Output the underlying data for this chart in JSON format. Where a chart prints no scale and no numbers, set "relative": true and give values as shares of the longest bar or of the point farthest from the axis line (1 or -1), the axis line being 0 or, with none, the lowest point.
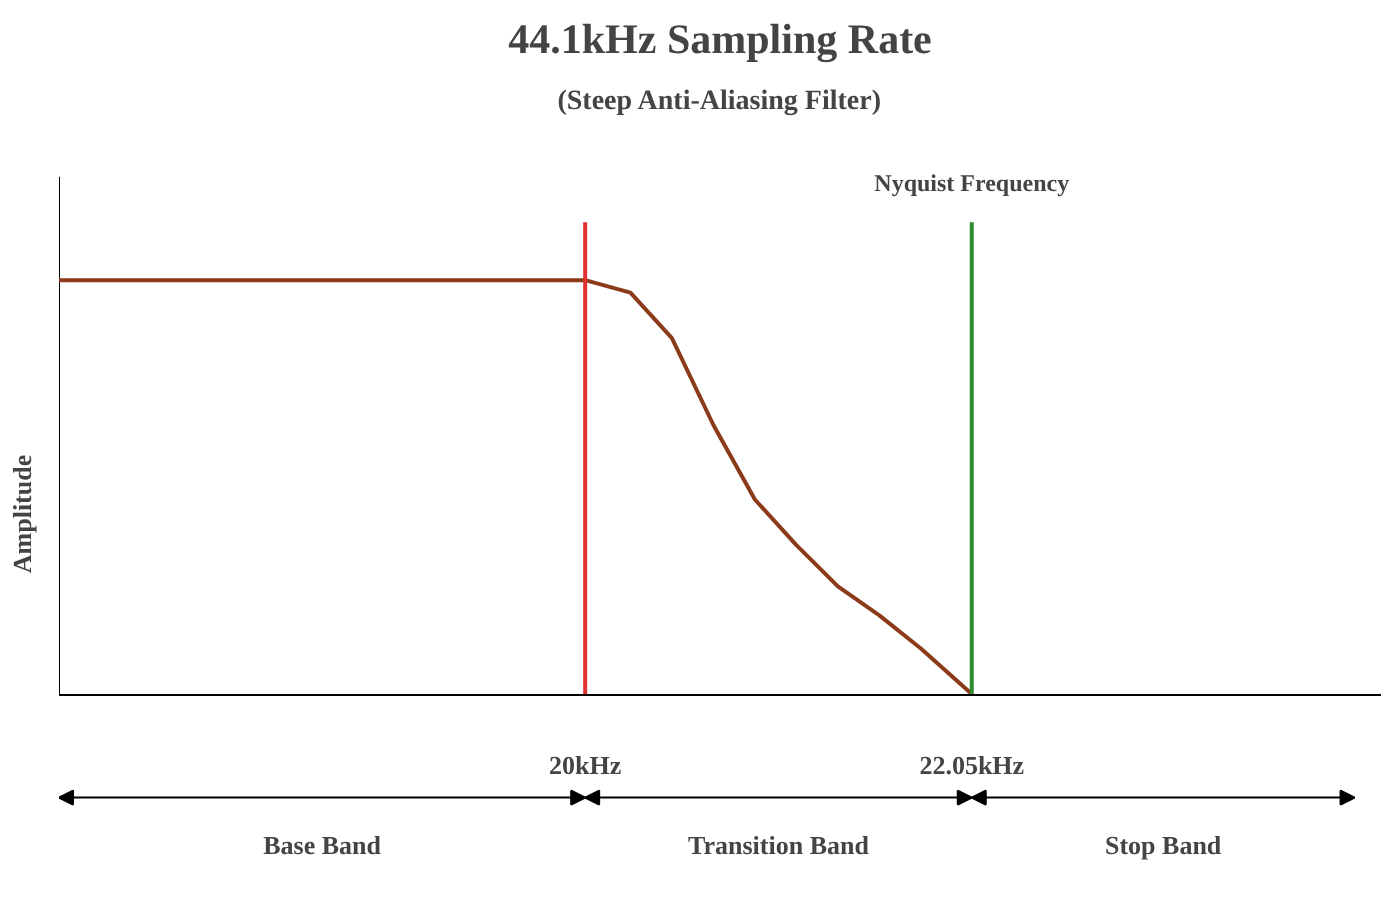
{
  "chart_data": {
    "type": "line",
    "title": "44.1kHz Sampling Rate",
    "subtitle": "(Steep Anti-Aliasing Filter)",
    "ylabel": "Amplitude",
    "relative": true,
    "x": [
      17.21,
      20.0,
      20.24,
      20.46,
      20.68,
      20.9,
      21.12,
      21.34,
      21.56,
      21.78,
      22.05
    ],
    "series": [
      {
        "color": "#8b3a1a",
        "values": [
          1.0,
          1.0,
          0.97,
          0.86,
          0.65,
          0.47,
          0.36,
          0.26,
          0.19,
          0.11,
          0.0
        ]
      }
    ],
    "xlim": [
      17.21,
      24.22
    ],
    "xticks": [
      {
        "value": 20,
        "label": "20kHz"
      },
      {
        "value": 22.05,
        "label": "22.05kHz"
      }
    ],
    "ref_lines": [
      {
        "axis": "x",
        "value": 20,
        "label": null,
        "color": "#e03030"
      },
      {
        "axis": "x",
        "value": 22.05,
        "label": "Nyquist Frequency",
        "color": "#2e8b2e"
      }
    ],
    "annotations": [
      "Base Band",
      "Transition Band",
      "Stop Band"
    ],
    "grid": false
  }
}
